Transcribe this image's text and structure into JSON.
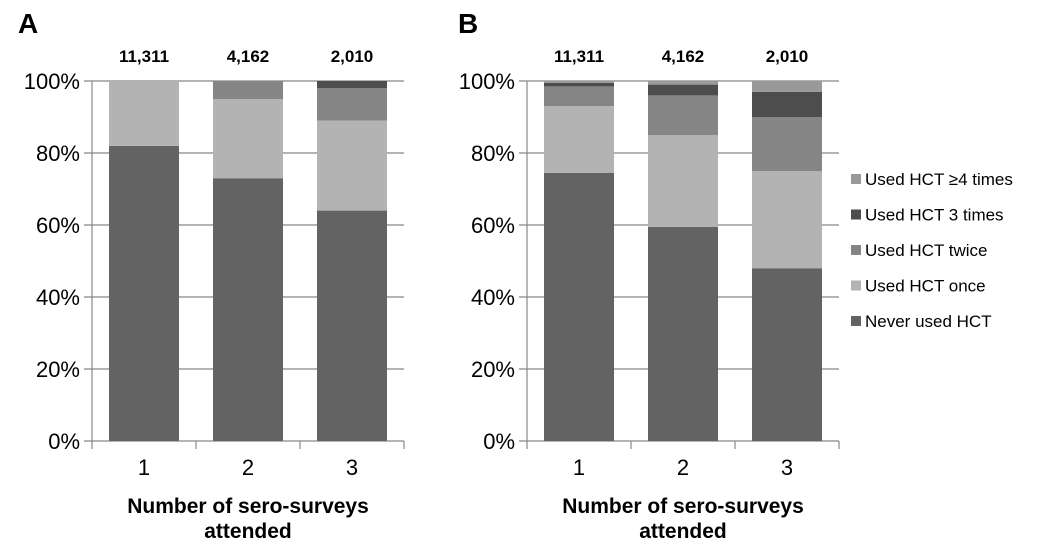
{
  "chart_data": [
    {
      "type": "bar",
      "stacked": true,
      "panel": "A",
      "categories": [
        "1",
        "2",
        "3"
      ],
      "top_labels": [
        "11,311",
        "4,162",
        "2,010"
      ],
      "xlabel": [
        "Number of sero-surveys",
        "attended"
      ],
      "ylabel": "",
      "ylim": [
        0,
        100
      ],
      "yticks": [
        "0%",
        "20%",
        "40%",
        "60%",
        "80%",
        "100%"
      ],
      "series": [
        {
          "name": "Never used HCT",
          "color": "#636363",
          "values": [
            82,
            73,
            64
          ]
        },
        {
          "name": "Used HCT once",
          "color": "#b3b3b3",
          "values": [
            18,
            22,
            25
          ]
        },
        {
          "name": "Used HCT twice",
          "color": "#858585",
          "values": [
            0,
            5,
            9
          ]
        },
        {
          "name": "Used HCT 3 times",
          "color": "#4d4d4d",
          "values": [
            0,
            0,
            2
          ]
        },
        {
          "name": "Used HCT ≥4 times",
          "color": "#999999",
          "values": [
            0,
            0,
            0
          ]
        }
      ]
    },
    {
      "type": "bar",
      "stacked": true,
      "panel": "B",
      "categories": [
        "1",
        "2",
        "3"
      ],
      "top_labels": [
        "11,311",
        "4,162",
        "2,010"
      ],
      "xlabel": [
        "Number of sero-surveys",
        "attended"
      ],
      "ylabel": "",
      "ylim": [
        0,
        100
      ],
      "yticks": [
        "0%",
        "20%",
        "40%",
        "60%",
        "80%",
        "100%"
      ],
      "series": [
        {
          "name": "Never used HCT",
          "color": "#636363",
          "values": [
            74.5,
            59.5,
            48
          ]
        },
        {
          "name": "Used HCT once",
          "color": "#b3b3b3",
          "values": [
            18.5,
            25.5,
            27
          ]
        },
        {
          "name": "Used HCT twice",
          "color": "#858585",
          "values": [
            5.5,
            11,
            15
          ]
        },
        {
          "name": "Used HCT 3 times",
          "color": "#4d4d4d",
          "values": [
            1,
            3,
            7
          ]
        },
        {
          "name": "Used HCT ≥4 times",
          "color": "#999999",
          "values": [
            0.5,
            1,
            3
          ]
        }
      ]
    }
  ],
  "legend": {
    "position": "right",
    "items": [
      {
        "label": "Used HCT ≥4 times",
        "color": "#999999"
      },
      {
        "label": "Used HCT 3 times",
        "color": "#4d4d4d"
      },
      {
        "label": "Used HCT twice",
        "color": "#858585"
      },
      {
        "label": "Used HCT once",
        "color": "#b3b3b3"
      },
      {
        "label": "Never used HCT",
        "color": "#636363"
      }
    ]
  }
}
